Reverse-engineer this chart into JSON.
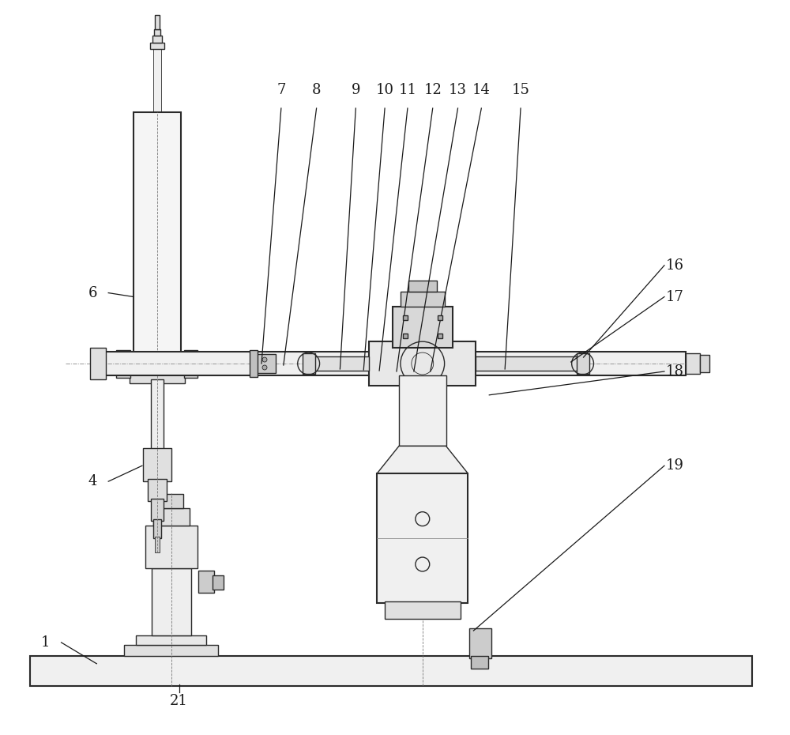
{
  "bg_color": "#ffffff",
  "line_color": "#2a2a2a",
  "label_color": "#1a1a1a",
  "fig_w": 10.0,
  "fig_h": 9.3,
  "dpi": 100
}
